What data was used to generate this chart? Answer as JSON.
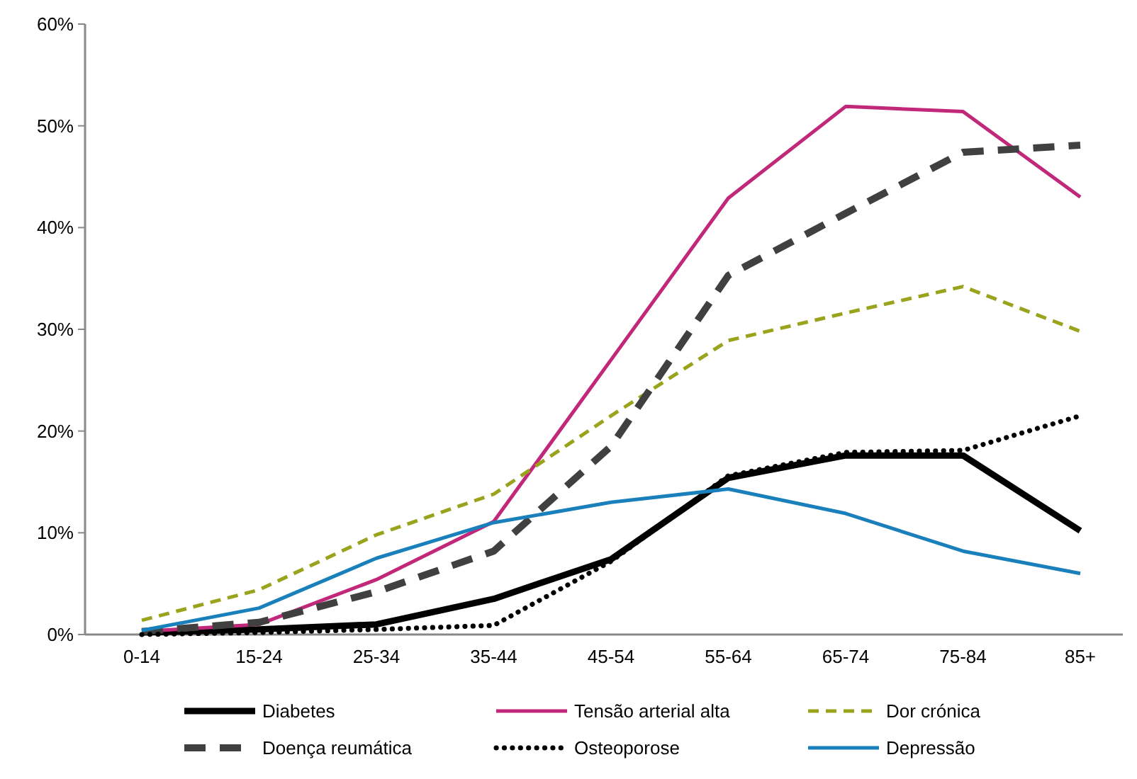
{
  "chart_data": {
    "type": "line",
    "categories": [
      "0-14",
      "15-24",
      "25-34",
      "35-44",
      "45-54",
      "55-64",
      "65-74",
      "75-84",
      "85+"
    ],
    "ylim": [
      0,
      60
    ],
    "yticks": [
      {
        "value": 0,
        "label": "0%"
      },
      {
        "value": 10,
        "label": "10%"
      },
      {
        "value": 20,
        "label": "20%"
      },
      {
        "value": 30,
        "label": "30%"
      },
      {
        "value": 40,
        "label": "40%"
      },
      {
        "value": 50,
        "label": "50%"
      },
      {
        "value": 60,
        "label": "60%"
      }
    ],
    "grid": false,
    "legend": "bottom",
    "marker": "none",
    "series": [
      {
        "name": "Diabetes",
        "color": "#000000",
        "line_style": "solid",
        "values": [
          0.2,
          0.5,
          1.0,
          3.5,
          7.4,
          15.4,
          17.6,
          17.6,
          10.2
        ]
      },
      {
        "name": "Tensão arterial alta",
        "color": "#c2287a",
        "line_style": "solid",
        "values": [
          0.3,
          1.0,
          5.4,
          11.1,
          27,
          42.9,
          51.9,
          51.4,
          43.0
        ]
      },
      {
        "name": "Dor crónica",
        "color": "#99a31c",
        "line_style": "dashed",
        "values": [
          1.4,
          4.4,
          9.8,
          13.8,
          21.5,
          28.9,
          31.6,
          34.2,
          29.8
        ]
      },
      {
        "name": "Doença reumática",
        "color": "#404040",
        "line_style": "dashed",
        "values": [
          0.3,
          1.2,
          4.2,
          8.2,
          18.5,
          35.3,
          41.4,
          47.4,
          48.1
        ]
      },
      {
        "name": "Osteoporose",
        "color": "#000000",
        "line_style": "dotted",
        "values": [
          0,
          0.2,
          0.5,
          0.9,
          7.2,
          15.6,
          17.9,
          18.1,
          21.5
        ]
      },
      {
        "name": "Depressão",
        "color": "#1a80bb",
        "line_style": "solid",
        "values": [
          0.4,
          2.6,
          7.5,
          11.0,
          13.0,
          14.3,
          11.9,
          8.2,
          6.0
        ]
      }
    ]
  }
}
